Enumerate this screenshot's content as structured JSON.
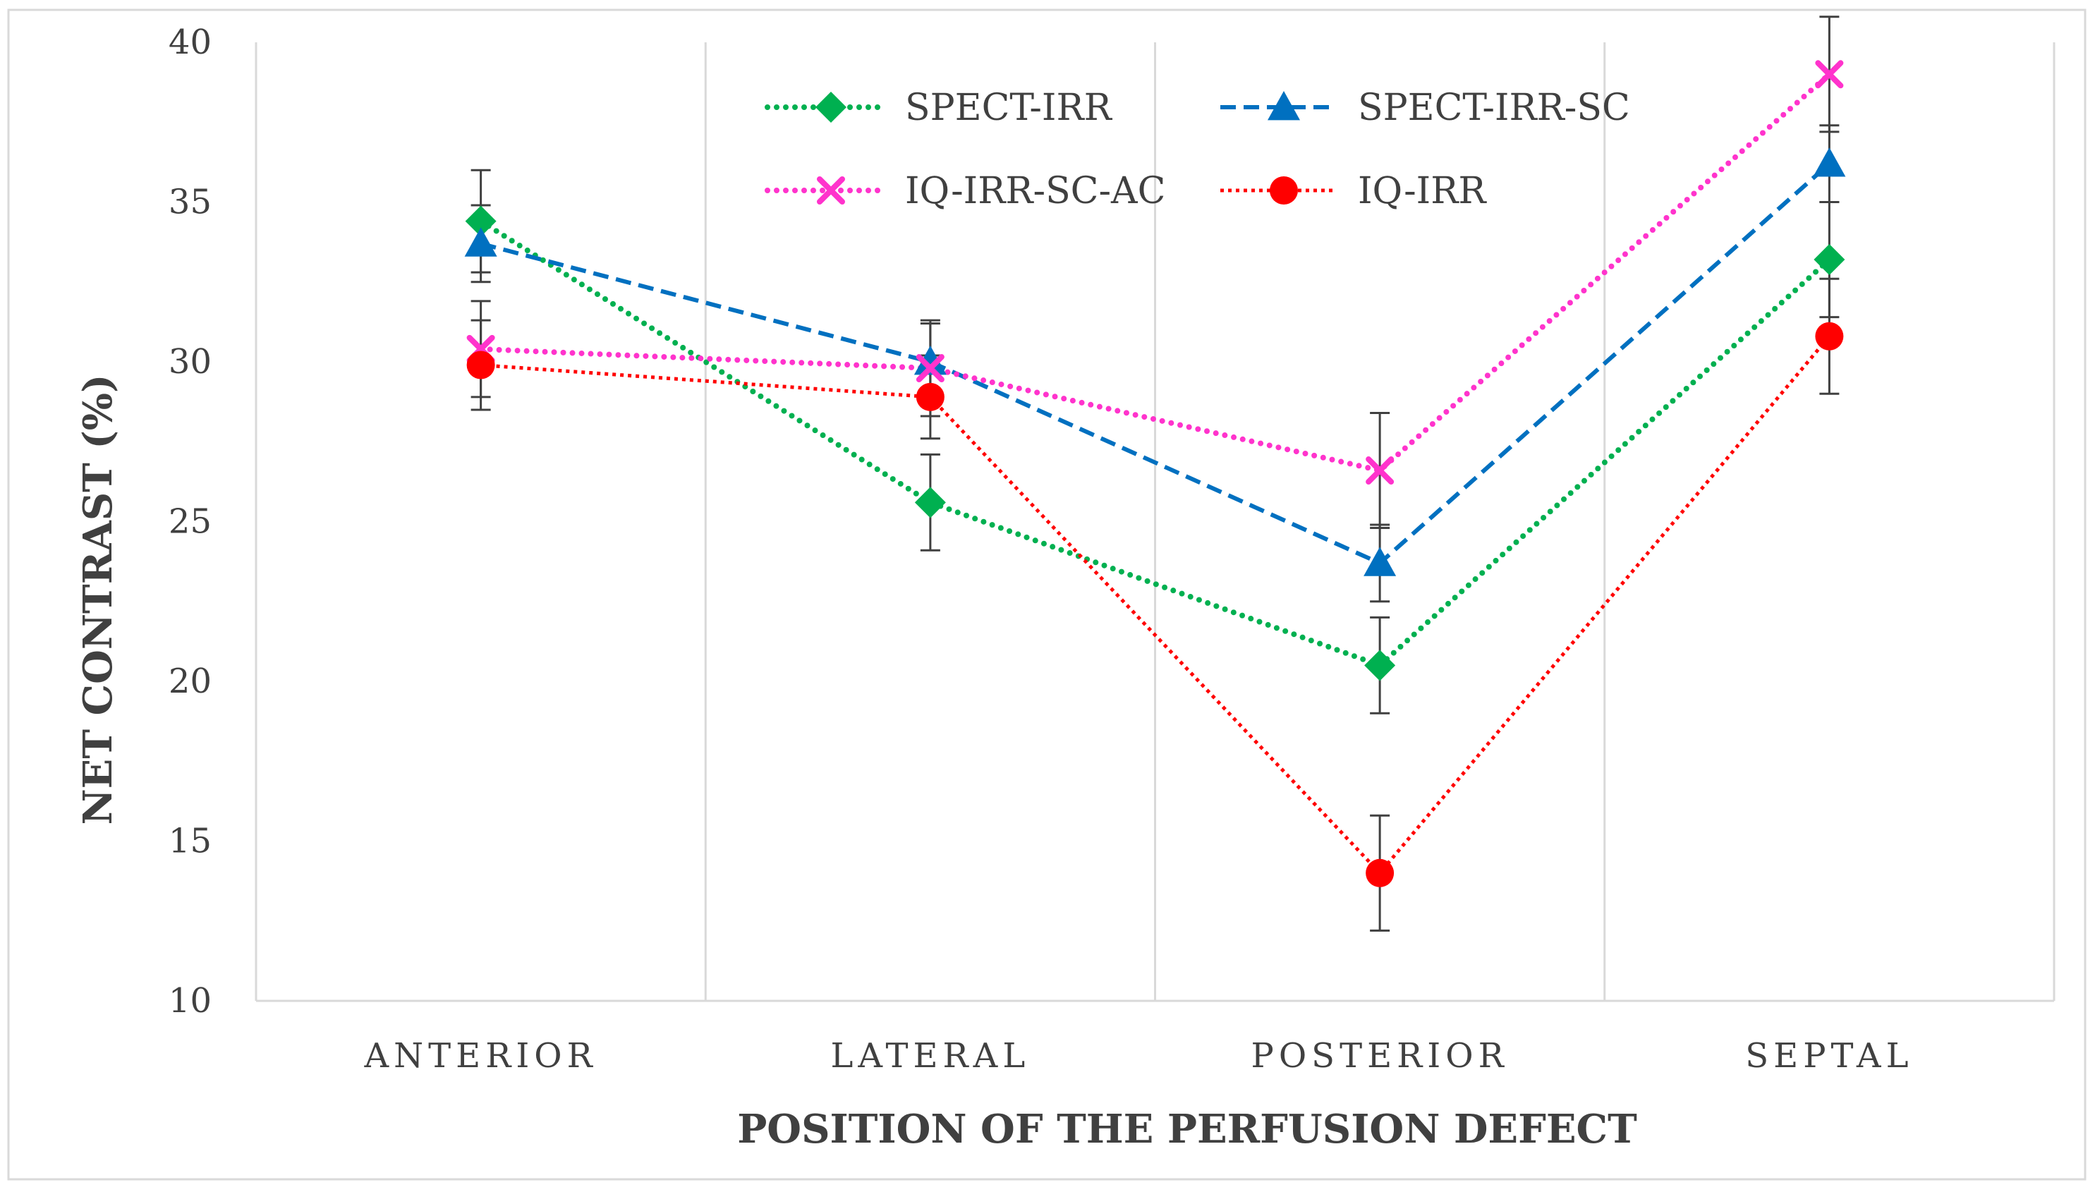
{
  "chart_data": {
    "type": "line",
    "title": "",
    "xlabel": "POSITION OF THE PERFUSION DEFECT",
    "ylabel": "NET CONTRAST (%)",
    "categories": [
      "ANTERIOR",
      "LATERAL",
      "POSTERIOR",
      "SEPTAL"
    ],
    "ylim": [
      10,
      40
    ],
    "yticks": [
      10,
      15,
      20,
      25,
      30,
      35,
      40
    ],
    "grid": "vertical",
    "legend_position": "top-center",
    "series": [
      {
        "name": "SPECT-IRR",
        "values": [
          34.4,
          25.6,
          20.5,
          33.2
        ],
        "errors": [
          1.6,
          1.5,
          1.5,
          1.8
        ],
        "color": "#00b050",
        "marker": "diamond",
        "line_style": "dotted-round"
      },
      {
        "name": "SPECT-IRR-SC",
        "values": [
          33.7,
          30.0,
          23.7,
          36.2
        ],
        "errors": [
          1.2,
          1.2,
          1.2,
          1.2
        ],
        "color": "#0070c0",
        "marker": "triangle",
        "line_style": "dashed"
      },
      {
        "name": "IQ-IRR-SC-AC",
        "values": [
          30.4,
          29.8,
          26.6,
          39.0
        ],
        "errors": [
          1.5,
          1.5,
          1.8,
          1.8
        ],
        "color": "#ff33cc",
        "marker": "x",
        "line_style": "dotted-round"
      },
      {
        "name": "IQ-IRR",
        "values": [
          29.9,
          28.9,
          14.0,
          30.8
        ],
        "errors": [
          1.4,
          1.3,
          1.8,
          1.8
        ],
        "color": "#ff0000",
        "marker": "circle",
        "line_style": "dotted"
      }
    ]
  }
}
